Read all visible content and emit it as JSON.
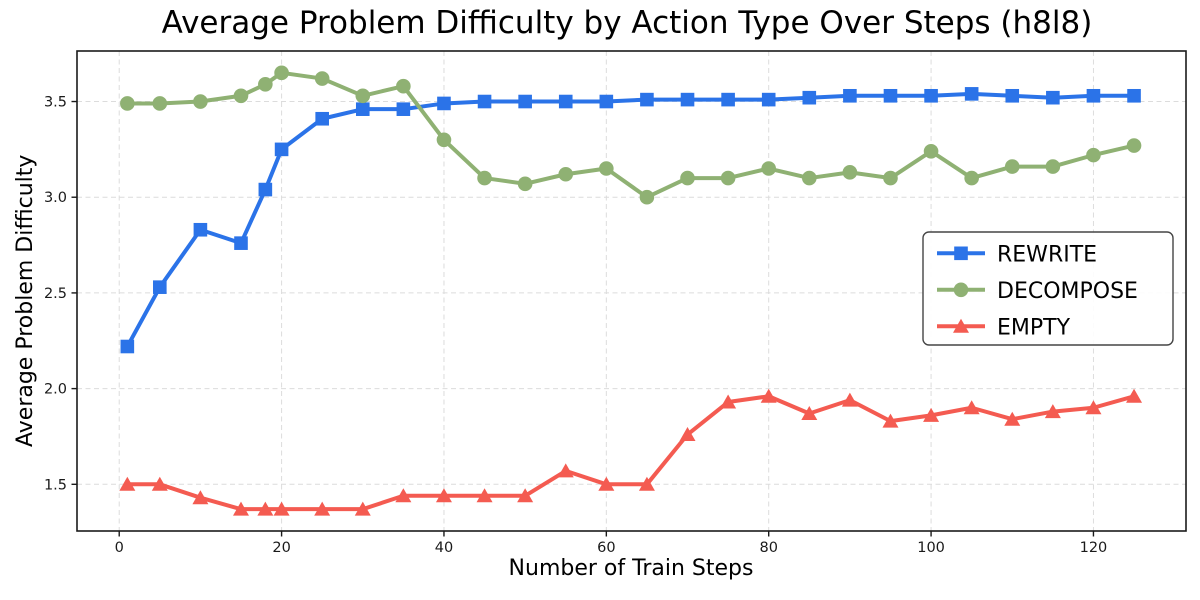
{
  "chart_data": {
    "type": "line",
    "title": "Average Problem Difficulty by Action Type Over Steps (h8l8)",
    "xlabel": "Number of Train Steps",
    "ylabel": "Average Problem Difficulty",
    "x": [
      1,
      5,
      10,
      15,
      18,
      20,
      25,
      30,
      35,
      40,
      45,
      50,
      55,
      60,
      65,
      70,
      75,
      80,
      85,
      90,
      95,
      100,
      105,
      110,
      115,
      120,
      125
    ],
    "series": [
      {
        "name": "REWRITE",
        "marker": "square",
        "color": "#2b73e8",
        "values": [
          2.22,
          2.53,
          2.83,
          2.76,
          3.04,
          3.25,
          3.41,
          3.46,
          3.46,
          3.49,
          3.5,
          3.5,
          3.5,
          3.5,
          3.51,
          3.51,
          3.51,
          3.51,
          3.52,
          3.53,
          3.53,
          3.53,
          3.54,
          3.53,
          3.52,
          3.53,
          3.53
        ]
      },
      {
        "name": "DECOMPOSE",
        "marker": "circle",
        "color": "#8fb173",
        "values": [
          3.49,
          3.49,
          3.5,
          3.53,
          3.59,
          3.65,
          3.62,
          3.53,
          3.58,
          3.3,
          3.1,
          3.07,
          3.12,
          3.15,
          3.0,
          3.1,
          3.1,
          3.15,
          3.1,
          3.13,
          3.1,
          3.24,
          3.1,
          3.16,
          3.16,
          3.22,
          3.27
        ]
      },
      {
        "name": "EMPTY",
        "marker": "triangle",
        "color": "#f45b51",
        "values": [
          1.5,
          1.5,
          1.43,
          1.37,
          1.37,
          1.37,
          1.37,
          1.37,
          1.44,
          1.44,
          1.44,
          1.44,
          1.57,
          1.5,
          1.5,
          1.76,
          1.93,
          1.96,
          1.87,
          1.94,
          1.83,
          1.86,
          1.9,
          1.84,
          1.88,
          1.9,
          1.96
        ]
      }
    ],
    "xticks": [
      0,
      20,
      40,
      60,
      80,
      100,
      120
    ],
    "yticks": [
      1.5,
      2.0,
      2.5,
      3.0,
      3.5
    ],
    "ytick_labels": [
      "1.5",
      "2.0",
      "2.5",
      "3.0",
      "3.5"
    ],
    "xlim": [
      -5.2,
      131.4
    ],
    "ylim": [
      1.256,
      3.764
    ],
    "grid": true,
    "legend_position": "center right",
    "colors": {
      "grid": "#dcdcdc",
      "axis": "#1a1a1a",
      "legend_border": "#454545",
      "background": "#ffffff"
    }
  }
}
